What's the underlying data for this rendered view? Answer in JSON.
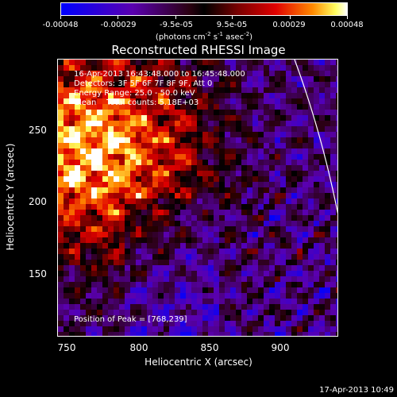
{
  "colorbar": {
    "ticks": [
      "-0.00048",
      "-0.00029",
      "-9.5e-05",
      "9.5e-05",
      "0.00029",
      "0.00048"
    ],
    "unit_a": "(photons cm",
    "unit_b": "-2",
    "unit_c": " s",
    "unit_d": "-1",
    "unit_e": " asec",
    "unit_f": "-2",
    "unit_g": ")"
  },
  "chart_data": {
    "type": "heatmap",
    "title": "Reconstructed RHESSI Image",
    "xlabel": "Heliocentric X (arcsec)",
    "ylabel": "Heliocentric Y (arcsec)",
    "xlim": [
      745,
      938
    ],
    "ylim": [
      102,
      300
    ],
    "x_ticks": [
      "750",
      "800",
      "850",
      "900"
    ],
    "y_ticks": [
      "250",
      "200",
      "150"
    ],
    "x_tick_values": [
      750,
      800,
      850,
      900
    ],
    "y_tick_values": [
      250,
      200,
      150
    ],
    "colorbar_range": [
      -0.00048,
      0.00048
    ],
    "peak": [
      768,
      239
    ],
    "limb_visible": true
  },
  "annotations": {
    "time": "16-Apr-2013 16:43:48.000 to 16:45:48.000",
    "detectors": "Detectors: 3F 5F 6F 7F 8F 9F, Att 0",
    "energy": "Energy Range: 25.0 - 50.0 keV",
    "clean": "Clean    Total counts: 5.18E+03",
    "peak": "Position of Peak = [768,239]"
  },
  "timestamp": "17-Apr-2013 10:49",
  "colors": {
    "background": "#000000",
    "text": "#ffffff",
    "limb": "#ffffff"
  }
}
